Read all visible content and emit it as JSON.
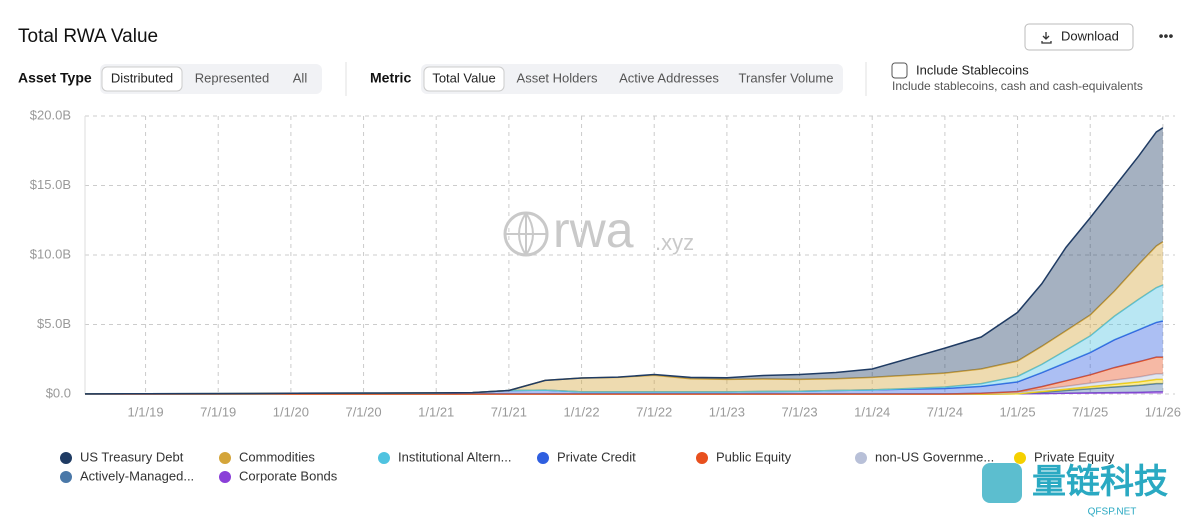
{
  "header": {
    "title": "Total RWA Value",
    "download": "Download",
    "menu": "•••"
  },
  "controls": {
    "asset_type": {
      "label": "Asset Type",
      "options": [
        "Distributed",
        "Represented",
        "All"
      ]
    },
    "metric": {
      "label": "Metric",
      "options": [
        "Total Value",
        "Asset Holders",
        "Active Addresses",
        "Transfer Volume"
      ]
    },
    "stablecoins": {
      "label": "Include Stablecoins",
      "description": "Include stablecoins, cash and cash-equivalents"
    }
  },
  "watermarks": {
    "chart": "rwa",
    "chart_suffix": ".xyz",
    "corner": "量链科技",
    "corner_sub": "QFSP.NET"
  },
  "chart_data": {
    "type": "stacked_area",
    "x": [
      "8/1/18",
      "1/1/19",
      "7/1/19",
      "1/1/20",
      "7/1/20",
      "1/1/21",
      "4/1/21",
      "7/1/21",
      "10/1/21",
      "1/1/22",
      "4/1/22",
      "7/1/22",
      "10/1/22",
      "1/1/23",
      "4/1/23",
      "7/1/23",
      "10/1/23",
      "1/1/24",
      "4/1/24",
      "7/1/24",
      "10/1/24",
      "1/1/25",
      "3/1/25",
      "5/1/25",
      "7/1/25",
      "9/1/25",
      "11/1/25",
      "12/15/25",
      "1/1/26"
    ],
    "xlim": [
      "8/1/18",
      "2/1/26"
    ],
    "xticks": [
      "1/1/19",
      "7/1/19",
      "1/1/20",
      "7/1/20",
      "1/1/21",
      "7/1/21",
      "1/1/22",
      "7/1/22",
      "1/1/23",
      "7/1/23",
      "1/1/24",
      "7/1/24",
      "1/1/25",
      "7/1/25",
      "1/1/26"
    ],
    "ylim": [
      0,
      20
    ],
    "yticks": [
      {
        "value": 0,
        "label": "$0.0"
      },
      {
        "value": 5,
        "label": "$5.0B"
      },
      {
        "value": 10,
        "label": "$10.0B"
      },
      {
        "value": 15,
        "label": "$15.0B"
      },
      {
        "value": 20,
        "label": "$20.0B"
      }
    ],
    "grid": true,
    "series": [
      {
        "name": "US Treasury Debt",
        "color": "#1f3b63",
        "values": [
          0,
          0,
          0,
          0,
          0,
          0,
          0,
          0,
          0,
          0,
          0.01,
          0.05,
          0.1,
          0.12,
          0.25,
          0.35,
          0.45,
          0.6,
          1.2,
          1.8,
          2.3,
          3.5,
          4.5,
          6.0,
          7.0,
          7.5,
          7.8,
          8.2,
          8.2
        ]
      },
      {
        "name": "Commodities",
        "color": "#d4a53a",
        "values": [
          0,
          0,
          0,
          0,
          0,
          0,
          0,
          0,
          0.7,
          1.0,
          1.05,
          1.2,
          0.95,
          0.9,
          0.9,
          0.85,
          0.85,
          0.9,
          0.95,
          1.0,
          1.05,
          1.1,
          1.3,
          1.4,
          1.5,
          1.8,
          2.5,
          3.0,
          3.1
        ]
      },
      {
        "name": "Institutional Altern...",
        "color": "#4fc3e0",
        "values": [
          0,
          0,
          0,
          0,
          0,
          0,
          0,
          0,
          0,
          0,
          0,
          0,
          0,
          0,
          0,
          0,
          0,
          0,
          0.05,
          0.1,
          0.2,
          0.4,
          0.6,
          0.9,
          1.2,
          1.7,
          2.2,
          2.5,
          2.6
        ]
      },
      {
        "name": "Private Credit",
        "color": "#2f5fe0",
        "values": [
          0.01,
          0.02,
          0.03,
          0.05,
          0.06,
          0.08,
          0.1,
          0.25,
          0.28,
          0.15,
          0.15,
          0.15,
          0.15,
          0.15,
          0.18,
          0.2,
          0.25,
          0.3,
          0.35,
          0.4,
          0.5,
          0.7,
          1.0,
          1.3,
          1.6,
          2.0,
          2.3,
          2.5,
          2.6
        ]
      },
      {
        "name": "Public Equity",
        "color": "#e8501e",
        "values": [
          0,
          0,
          0,
          0,
          0,
          0,
          0,
          0,
          0,
          0,
          0,
          0,
          0,
          0,
          0,
          0,
          0,
          0,
          0,
          0,
          0,
          0.05,
          0.2,
          0.4,
          0.6,
          0.9,
          1.1,
          1.2,
          1.2
        ]
      },
      {
        "name": "non-US Governme...",
        "color": "#b8c0d8",
        "values": [
          0,
          0,
          0,
          0,
          0,
          0,
          0,
          0,
          0,
          0,
          0,
          0,
          0,
          0,
          0,
          0,
          0,
          0,
          0,
          0,
          0.05,
          0.1,
          0.15,
          0.2,
          0.25,
          0.3,
          0.35,
          0.4,
          0.4
        ]
      },
      {
        "name": "Private Equity",
        "color": "#f5d000",
        "values": [
          0,
          0,
          0,
          0,
          0,
          0,
          0,
          0,
          0,
          0,
          0,
          0,
          0,
          0,
          0,
          0,
          0,
          0,
          0,
          0,
          0,
          0,
          0.05,
          0.1,
          0.15,
          0.2,
          0.25,
          0.3,
          0.3
        ]
      },
      {
        "name": "Actively-Managed...",
        "color": "#4a78a8",
        "values": [
          0,
          0,
          0,
          0,
          0,
          0,
          0,
          0,
          0,
          0,
          0,
          0,
          0,
          0,
          0,
          0,
          0,
          0,
          0,
          0,
          0,
          0,
          0.1,
          0.2,
          0.3,
          0.4,
          0.5,
          0.6,
          0.6
        ]
      },
      {
        "name": "Corporate Bonds",
        "color": "#8a3fd8",
        "values": [
          0,
          0,
          0,
          0,
          0,
          0,
          0,
          0,
          0,
          0,
          0,
          0,
          0,
          0,
          0,
          0,
          0,
          0,
          0,
          0,
          0,
          0.02,
          0.03,
          0.05,
          0.08,
          0.1,
          0.12,
          0.15,
          0.15
        ]
      }
    ]
  }
}
